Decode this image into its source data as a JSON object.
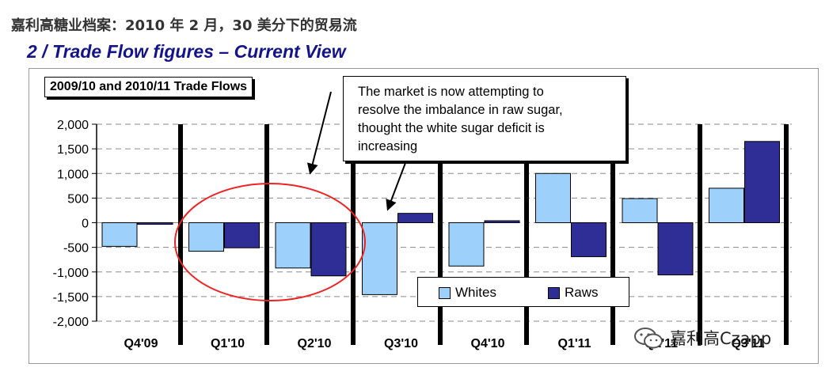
{
  "headline": "嘉利高糖业档案：2010 年 2 月，30 美分下的贸易流",
  "slide_title": "2 / Trade Flow figures – Current View",
  "callout_text": "The market is now attempting to\nresolve the imbalance in raw sugar,\nthought the white sugar deficit is\nincreasing",
  "watermark": "嘉利高Czapp",
  "colors": {
    "whites": "#9dd1fb",
    "raws": "#2e2e96",
    "annotation_circle": "#ee2222",
    "title": "#14148a"
  },
  "chart_data": {
    "type": "bar",
    "title": "2009/10 and 2010/11 Trade Flows",
    "categories": [
      "Q4'09",
      "Q1'10",
      "Q2'10",
      "Q3'10",
      "Q4'10",
      "Q1'11",
      "Q2'11",
      "Q3'11"
    ],
    "series": [
      {
        "name": "Whites",
        "values": [
          -480,
          -580,
          -920,
          -1460,
          -880,
          1000,
          490,
          700
        ]
      },
      {
        "name": "Raws",
        "values": [
          -20,
          -510,
          -1080,
          190,
          40,
          -690,
          -1060,
          1650
        ]
      }
    ],
    "yticks": [
      "2,000",
      "1,500",
      "1,000",
      "500",
      "0",
      "-500",
      "-1,000",
      "-1,500",
      "-2,000"
    ],
    "ylim": [
      -2000,
      2000
    ],
    "legend_position": "bottom-center",
    "grid": "dashed horizontal",
    "annotations": [
      "circle around Q1'10 and Q2'10",
      "arrows from callout to Q2'10 and Q3'10"
    ]
  }
}
